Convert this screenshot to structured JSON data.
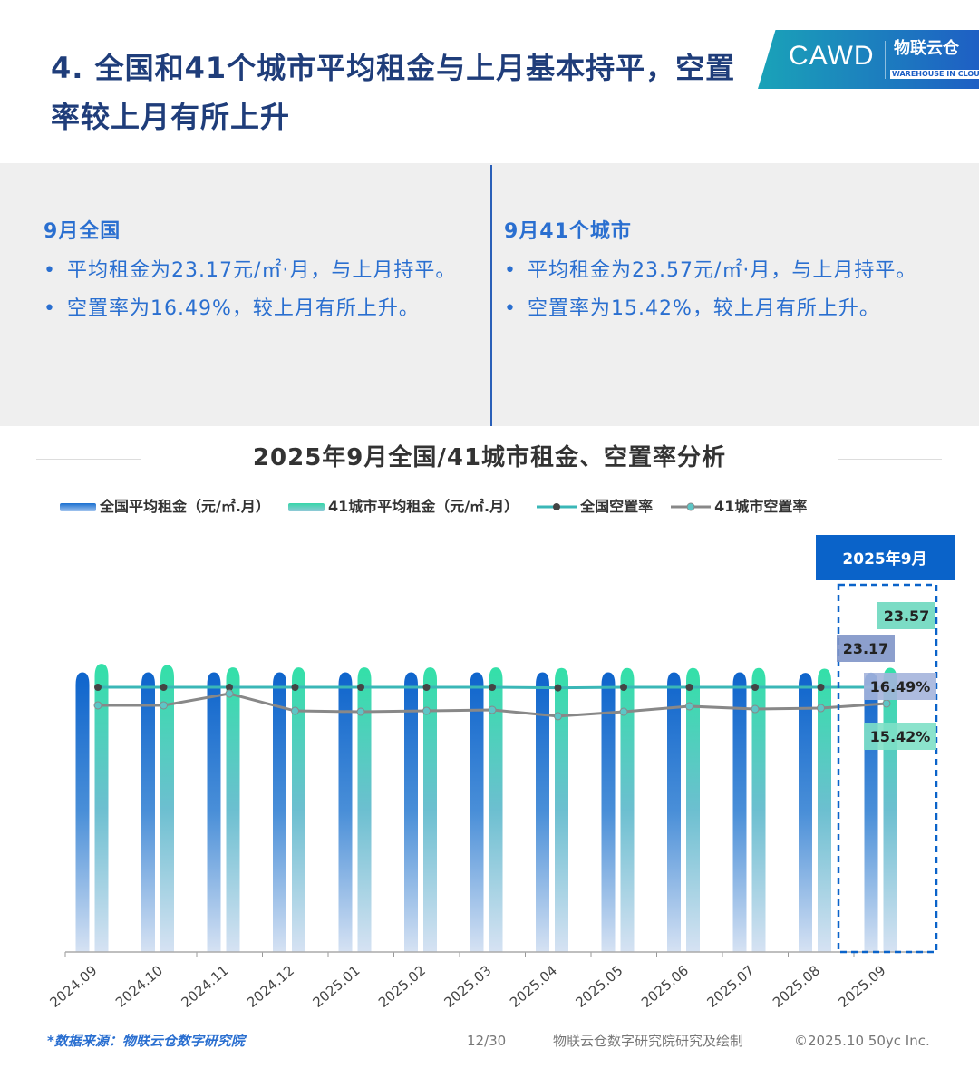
{
  "header": {
    "title": "4. 全国和41个城市平均租金与上月基本持平，空置率较上月有所上升",
    "logo_text": "CAWD",
    "logo_brand": "物联云仓",
    "logo_brand_en": "WAREHOUSE IN CLOUD"
  },
  "summary": {
    "left": {
      "heading": "9月全国",
      "items": [
        "平均租金为23.17元/㎡·月，与上月持平。",
        "空置率为16.49%，较上月有所上升。"
      ]
    },
    "right": {
      "heading": "9月41个城市",
      "items": [
        "平均租金为23.57元/㎡·月，与上月持平。",
        "空置率为15.42%，较上月有所上升。"
      ]
    }
  },
  "chart_data": {
    "type": "bar",
    "title": "2025年9月全国/41城市租金、空置率分析",
    "categories": [
      "2024.09",
      "2024.10",
      "2024.11",
      "2024.12",
      "2025.01",
      "2025.02",
      "2025.03",
      "2025.04",
      "2025.05",
      "2025.06",
      "2025.07",
      "2025.08",
      "2025.09"
    ],
    "series": [
      {
        "name": "全国平均租金（元/㎡.月）",
        "kind": "bar",
        "values": [
          23.2,
          23.2,
          23.2,
          23.2,
          23.2,
          23.2,
          23.2,
          23.2,
          23.2,
          23.2,
          23.2,
          23.15,
          23.17
        ]
      },
      {
        "name": "41城市平均租金（元/㎡.月）",
        "kind": "bar",
        "values": [
          23.9,
          23.8,
          23.6,
          23.6,
          23.6,
          23.6,
          23.6,
          23.55,
          23.55,
          23.55,
          23.55,
          23.5,
          23.57
        ]
      },
      {
        "name": "全国空置率",
        "kind": "line",
        "values": [
          16.49,
          16.49,
          16.49,
          16.49,
          16.49,
          16.49,
          16.49,
          16.45,
          16.49,
          16.49,
          16.49,
          16.49,
          16.49
        ]
      },
      {
        "name": "41城市空置率",
        "kind": "line",
        "values": [
          15.3,
          15.3,
          16.07,
          14.94,
          14.88,
          14.94,
          15.0,
          14.59,
          14.88,
          15.24,
          15.06,
          15.12,
          15.42
        ]
      }
    ],
    "highlight": {
      "label": "2025年9月",
      "labels": [
        "23.17",
        "23.57",
        "16.49%",
        "15.42%"
      ]
    },
    "colors": {
      "national_bar": "#1a6fd0",
      "city_bar": "#36d6a8",
      "national_line": "#3ab7b7",
      "city_line": "#888888",
      "highlight": "#0a63c9"
    }
  },
  "footer": {
    "source": "*数据来源：物联云仓数字研究院",
    "page": "12/30",
    "credit": "物联云仓数字研究院研究及绘制",
    "copyright": "©2025.10 50yc Inc."
  }
}
